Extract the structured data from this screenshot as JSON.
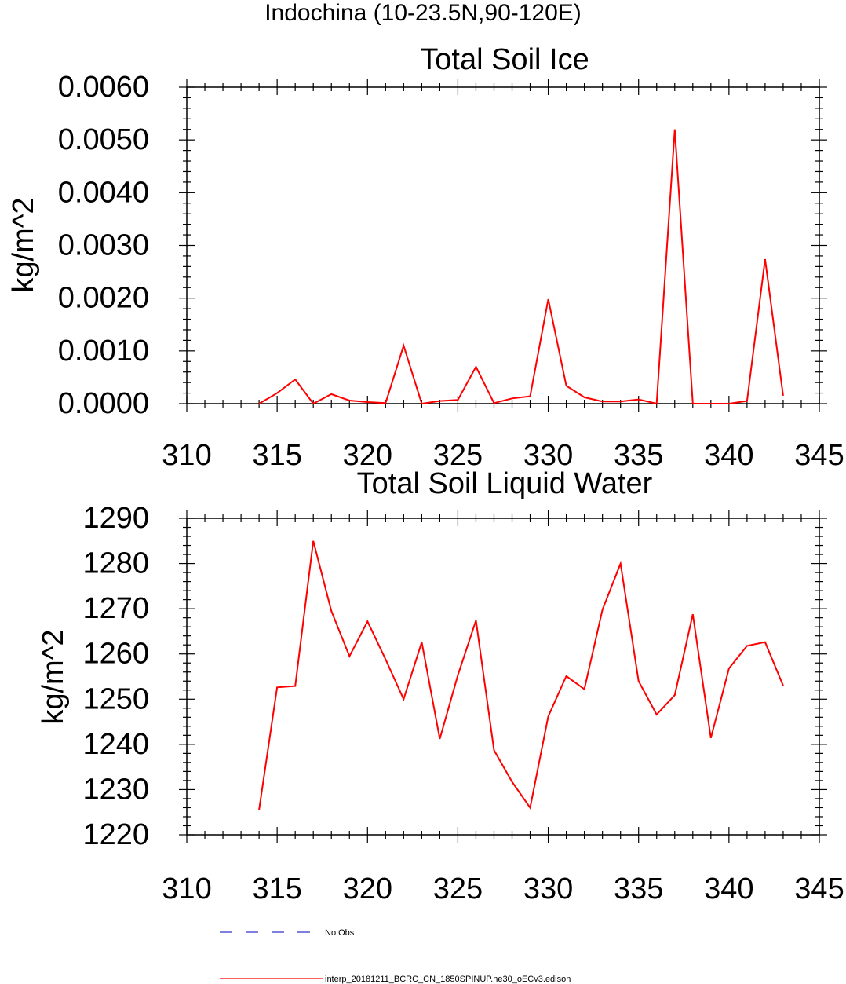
{
  "page_title": "Indochina (10-23.5N,90-120E)",
  "colors": {
    "model": "#ff0000",
    "obs": "#3333cc",
    "axis": "#000000"
  },
  "legend": {
    "obs_label": "No Obs",
    "model_label": "interp_20181211_BCRC_CN_1850SPINUP.ne30_oECv3.edison"
  },
  "chart_data": [
    {
      "type": "line",
      "title": "Total Soil Ice",
      "ylabel": "kg/m^2",
      "xlabel": "",
      "xlim": [
        310,
        345
      ],
      "ylim": [
        0,
        0.006
      ],
      "xticks": [
        310,
        315,
        320,
        325,
        330,
        335,
        340,
        345
      ],
      "xtick_labels": [
        "310",
        "315",
        "320",
        "325",
        "330",
        "335",
        "340",
        "345"
      ],
      "yticks": [
        0,
        0.001,
        0.002,
        0.003,
        0.004,
        0.005,
        0.006
      ],
      "ytick_labels": [
        "0.0000",
        "0.0010",
        "0.0020",
        "0.0030",
        "0.0040",
        "0.0050",
        "0.0060"
      ],
      "grid": false,
      "x": [
        314,
        315,
        316,
        317,
        318,
        319,
        320,
        321,
        322,
        323,
        324,
        325,
        326,
        327,
        328,
        329,
        330,
        331,
        332,
        333,
        334,
        335,
        336,
        337,
        338,
        339,
        340,
        341,
        342,
        343
      ],
      "series": [
        {
          "values": [
            0.0,
            0.0002,
            0.00046,
            0.0,
            0.00018,
            6e-05,
            3e-05,
            1e-05,
            0.0011,
            0.0,
            5e-05,
            7e-05,
            0.0007,
            1e-05,
            0.0001,
            0.00014,
            0.00198,
            0.00034,
            0.00012,
            4e-05,
            4e-05,
            8e-05,
            0.0,
            0.0052,
            0.0,
            0.0,
            0.0,
            5e-05,
            0.00274,
            0.00015
          ]
        }
      ]
    },
    {
      "type": "line",
      "title": "Total Soil Liquid Water",
      "ylabel": "kg/m^2",
      "xlabel": "",
      "xlim": [
        310,
        345
      ],
      "ylim": [
        1220,
        1290
      ],
      "xticks": [
        310,
        315,
        320,
        325,
        330,
        335,
        340,
        345
      ],
      "xtick_labels": [
        "310",
        "315",
        "320",
        "325",
        "330",
        "335",
        "340",
        "345"
      ],
      "yticks": [
        1220,
        1230,
        1240,
        1250,
        1260,
        1270,
        1280,
        1290
      ],
      "ytick_labels": [
        "1220",
        "1230",
        "1240",
        "1250",
        "1260",
        "1270",
        "1280",
        "1290"
      ],
      "grid": false,
      "x": [
        314,
        315,
        316,
        317,
        318,
        319,
        320,
        321,
        322,
        323,
        324,
        325,
        326,
        327,
        328,
        329,
        330,
        331,
        332,
        333,
        334,
        335,
        336,
        337,
        338,
        339,
        340,
        341,
        342,
        343
      ],
      "series": [
        {
          "values": [
            1225.5,
            1252.6,
            1252.9,
            1285.0,
            1269.5,
            1259.5,
            1267.2,
            1258.8,
            1250.0,
            1262.6,
            1241.2,
            1255.3,
            1267.4,
            1238.7,
            1231.7,
            1226.0,
            1246.2,
            1255.1,
            1252.2,
            1269.8,
            1280.0,
            1254.0,
            1246.6,
            1250.9,
            1268.8,
            1241.4,
            1256.8,
            1261.8,
            1262.6,
            1253.0
          ]
        }
      ]
    }
  ]
}
